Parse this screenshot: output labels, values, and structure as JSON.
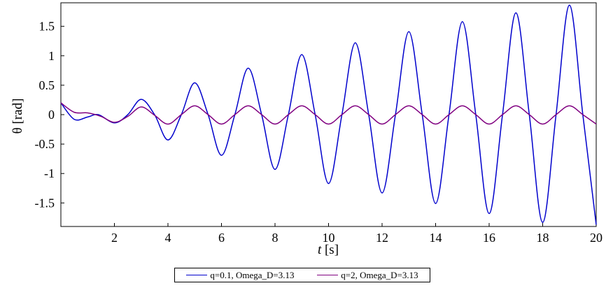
{
  "chart_data": {
    "type": "line",
    "xlabel_italic": "t",
    "xlabel_rest": " [s]",
    "ylabel": "θ [rad]",
    "xlim": [
      0,
      20
    ],
    "ylim": [
      -1.9,
      1.9
    ],
    "xticks": [
      2,
      4,
      6,
      8,
      10,
      12,
      14,
      16,
      18,
      20
    ],
    "yticks": [
      -1.5,
      -1,
      -0.5,
      0,
      0.5,
      1,
      1.5
    ],
    "ytick_labels": [
      "-1.5",
      "-1",
      "-0.5",
      "0",
      "0.5",
      "1",
      "1.5"
    ],
    "grid": false,
    "legend_position": "bottom",
    "series": [
      {
        "name": "q=0.1, Omega_D=3.13",
        "color": "#0000cc",
        "x": [
          0,
          0.5,
          1.0,
          1.4,
          2.0,
          2.5,
          3.0,
          3.5,
          4.0,
          4.5,
          5.0,
          5.5,
          6.0,
          6.5,
          7.0,
          7.5,
          8.0,
          8.5,
          9.0,
          9.5,
          10.0,
          10.5,
          11.0,
          11.5,
          12.0,
          12.5,
          13.0,
          13.5,
          14.0,
          14.5,
          15.0,
          15.5,
          16.0,
          16.5,
          17.0,
          17.5,
          18.0,
          18.5,
          19.0,
          19.5,
          20.0
        ],
        "y": [
          0.2,
          -0.08,
          -0.04,
          0.0,
          -0.14,
          0.0,
          0.26,
          0.0,
          -0.43,
          0.0,
          0.54,
          0.0,
          -0.69,
          0.0,
          0.79,
          0.0,
          -0.93,
          0.0,
          1.02,
          0.0,
          -1.17,
          0.0,
          1.22,
          0.0,
          -1.33,
          0.0,
          1.41,
          0.0,
          -1.51,
          0.0,
          1.58,
          0.0,
          -1.68,
          0.0,
          1.73,
          0.0,
          -1.83,
          0.0,
          1.86,
          0.0,
          -1.87
        ]
      },
      {
        "name": "q=2, Omega_D=3.13",
        "color": "#800080",
        "x": [
          0,
          0.5,
          1.0,
          1.5,
          2.0,
          2.5,
          3.0,
          3.5,
          4.0,
          4.5,
          5.0,
          5.5,
          6.0,
          6.5,
          7.0,
          7.5,
          8.0,
          8.5,
          9.0,
          9.5,
          10.0,
          10.5,
          11.0,
          11.5,
          12.0,
          12.5,
          13.0,
          13.5,
          14.0,
          14.5,
          15.0,
          15.5,
          16.0,
          16.5,
          17.0,
          17.5,
          18.0,
          18.5,
          19.0,
          19.5,
          20.0
        ],
        "y": [
          0.2,
          0.04,
          0.03,
          -0.03,
          -0.13,
          -0.03,
          0.13,
          -0.01,
          -0.16,
          0.0,
          0.15,
          0.0,
          -0.16,
          0.0,
          0.15,
          0.0,
          -0.16,
          0.0,
          0.15,
          0.0,
          -0.16,
          0.0,
          0.15,
          0.0,
          -0.16,
          0.0,
          0.15,
          0.0,
          -0.16,
          0.0,
          0.15,
          0.0,
          -0.16,
          0.0,
          0.15,
          0.0,
          -0.16,
          0.0,
          0.15,
          0.0,
          -0.16
        ]
      }
    ]
  }
}
